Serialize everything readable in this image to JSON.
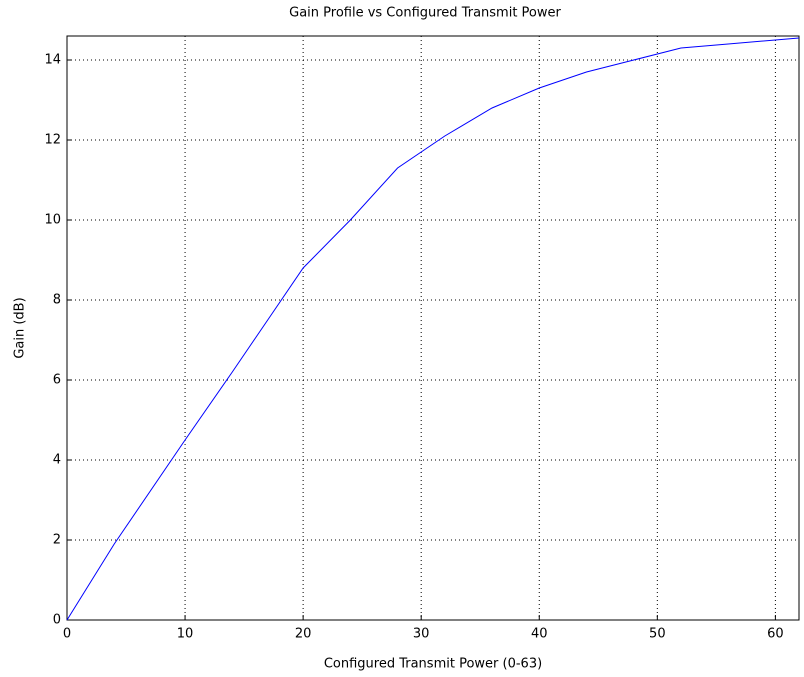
{
  "chart_data": {
    "type": "line",
    "title": "Gain Profile vs Configured Transmit Power",
    "x_label": "Configured Transmit Power (0-63)",
    "y_label": "Gain (dB)",
    "x": [
      0,
      4,
      10,
      14,
      17,
      20,
      24,
      28,
      32,
      36,
      40,
      44,
      48,
      52,
      56,
      60,
      62
    ],
    "series": [
      {
        "name": "Gain",
        "color": "#0000ff",
        "values": [
          0,
          1.9,
          4.5,
          6.2,
          7.5,
          8.8,
          10.0,
          11.3,
          12.1,
          12.8,
          13.3,
          13.7,
          14.0,
          14.3,
          14.4,
          14.5,
          14.55
        ]
      }
    ],
    "xlim": [
      0,
      62
    ],
    "ylim": [
      0,
      14.6
    ],
    "xticks": [
      0,
      10,
      20,
      30,
      40,
      50,
      60
    ],
    "yticks": [
      0,
      2,
      4,
      6,
      8,
      10,
      12,
      14
    ],
    "grid": true
  }
}
